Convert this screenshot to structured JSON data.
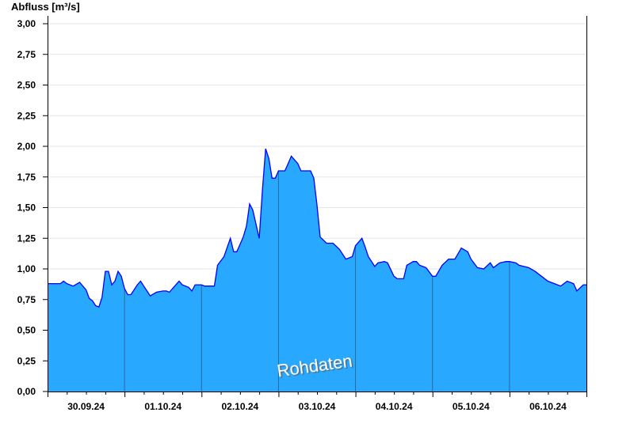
{
  "chart_data": {
    "type": "area",
    "title": "",
    "ylabel": "Abfluss [m³/s]",
    "xlabel": "",
    "ylim": [
      0,
      3.0
    ],
    "yticks": [
      "0,00",
      "0,25",
      "0,50",
      "0,75",
      "1,00",
      "1,25",
      "1,50",
      "1,75",
      "2,00",
      "2,25",
      "2,50",
      "2,75",
      "3,00"
    ],
    "xlim": [
      "30.09.24 00:00",
      "07.10.24 00:00"
    ],
    "xticks": [
      "30.09.24",
      "01.10.24",
      "02.10.24",
      "03.10.24",
      "04.10.24",
      "05.10.24",
      "06.10.24"
    ],
    "grid": true,
    "watermark": "Rohdaten",
    "colors": {
      "fill": "#29a8ff",
      "line": "#0000ff",
      "day_separator": "#2a6a9a",
      "grid": "#e6e6e6"
    },
    "points": [
      [
        "30.09.24 00:00",
        0.88
      ],
      [
        "30.09.24 02:00",
        0.88
      ],
      [
        "30.09.24 04:00",
        0.88
      ],
      [
        "30.09.24 05:00",
        0.9
      ],
      [
        "30.09.24 06:00",
        0.88
      ],
      [
        "30.09.24 08:00",
        0.86
      ],
      [
        "30.09.24 10:00",
        0.89
      ],
      [
        "30.09.24 12:00",
        0.83
      ],
      [
        "30.09.24 13:00",
        0.76
      ],
      [
        "30.09.24 14:00",
        0.74
      ],
      [
        "30.09.24 15:00",
        0.7
      ],
      [
        "30.09.24 16:00",
        0.69
      ],
      [
        "30.09.24 17:00",
        0.77
      ],
      [
        "30.09.24 18:00",
        0.98
      ],
      [
        "30.09.24 19:00",
        0.98
      ],
      [
        "30.09.24 20:00",
        0.87
      ],
      [
        "30.09.24 21:00",
        0.9
      ],
      [
        "30.09.24 22:00",
        0.98
      ],
      [
        "30.09.24 23:00",
        0.94
      ],
      [
        "01.10.24 00:00",
        0.84
      ],
      [
        "01.10.24 01:00",
        0.79
      ],
      [
        "01.10.24 02:00",
        0.79
      ],
      [
        "01.10.24 04:00",
        0.87
      ],
      [
        "01.10.24 05:00",
        0.9
      ],
      [
        "01.10.24 06:00",
        0.86
      ],
      [
        "01.10.24 07:00",
        0.82
      ],
      [
        "01.10.24 08:00",
        0.78
      ],
      [
        "01.10.24 10:00",
        0.81
      ],
      [
        "01.10.24 12:00",
        0.82
      ],
      [
        "01.10.24 13:00",
        0.82
      ],
      [
        "01.10.24 14:00",
        0.81
      ],
      [
        "01.10.24 16:00",
        0.87
      ],
      [
        "01.10.24 17:00",
        0.9
      ],
      [
        "01.10.24 18:00",
        0.87
      ],
      [
        "01.10.24 20:00",
        0.85
      ],
      [
        "01.10.24 21:00",
        0.82
      ],
      [
        "01.10.24 22:00",
        0.87
      ],
      [
        "02.10.24 00:00",
        0.87
      ],
      [
        "02.10.24 01:00",
        0.86
      ],
      [
        "02.10.24 04:00",
        0.86
      ],
      [
        "02.10.24 05:00",
        1.03
      ],
      [
        "02.10.24 07:00",
        1.1
      ],
      [
        "02.10.24 09:00",
        1.25
      ],
      [
        "02.10.24 10:00",
        1.14
      ],
      [
        "02.10.24 11:00",
        1.14
      ],
      [
        "02.10.24 13:00",
        1.26
      ],
      [
        "02.10.24 14:00",
        1.35
      ],
      [
        "02.10.24 15:00",
        1.53
      ],
      [
        "02.10.24 16:00",
        1.48
      ],
      [
        "02.10.24 18:00",
        1.25
      ],
      [
        "02.10.24 19:00",
        1.65
      ],
      [
        "02.10.24 20:00",
        1.98
      ],
      [
        "02.10.24 21:00",
        1.9
      ],
      [
        "02.10.24 22:00",
        1.74
      ],
      [
        "02.10.24 23:00",
        1.74
      ],
      [
        "03.10.24 00:00",
        1.8
      ],
      [
        "03.10.24 02:00",
        1.8
      ],
      [
        "03.10.24 03:00",
        1.86
      ],
      [
        "03.10.24 04:00",
        1.92
      ],
      [
        "03.10.24 06:00",
        1.86
      ],
      [
        "03.10.24 07:00",
        1.8
      ],
      [
        "03.10.24 10:00",
        1.8
      ],
      [
        "03.10.24 11:00",
        1.74
      ],
      [
        "03.10.24 12:00",
        1.52
      ],
      [
        "03.10.24 13:00",
        1.26
      ],
      [
        "03.10.24 15:00",
        1.21
      ],
      [
        "03.10.24 17:00",
        1.21
      ],
      [
        "03.10.24 19:00",
        1.16
      ],
      [
        "03.10.24 21:00",
        1.08
      ],
      [
        "03.10.24 23:00",
        1.1
      ],
      [
        "04.10.24 00:00",
        1.19
      ],
      [
        "04.10.24 02:00",
        1.25
      ],
      [
        "04.10.24 03:00",
        1.18
      ],
      [
        "04.10.24 04:00",
        1.1
      ],
      [
        "04.10.24 06:00",
        1.02
      ],
      [
        "04.10.24 07:00",
        1.05
      ],
      [
        "04.10.24 09:00",
        1.06
      ],
      [
        "04.10.24 10:00",
        1.05
      ],
      [
        "04.10.24 12:00",
        0.94
      ],
      [
        "04.10.24 13:00",
        0.92
      ],
      [
        "04.10.24 15:00",
        0.92
      ],
      [
        "04.10.24 16:00",
        1.03
      ],
      [
        "04.10.24 18:00",
        1.06
      ],
      [
        "04.10.24 19:00",
        1.06
      ],
      [
        "04.10.24 20:00",
        1.03
      ],
      [
        "04.10.24 22:00",
        1.01
      ],
      [
        "05.10.24 00:00",
        0.94
      ],
      [
        "05.10.24 01:00",
        0.94
      ],
      [
        "05.10.24 03:00",
        1.03
      ],
      [
        "05.10.24 05:00",
        1.08
      ],
      [
        "05.10.24 07:00",
        1.08
      ],
      [
        "05.10.24 09:00",
        1.17
      ],
      [
        "05.10.24 11:00",
        1.14
      ],
      [
        "05.10.24 12:00",
        1.08
      ],
      [
        "05.10.24 14:00",
        1.01
      ],
      [
        "05.10.24 16:00",
        1.0
      ],
      [
        "05.10.24 18:00",
        1.05
      ],
      [
        "05.10.24 19:00",
        1.01
      ],
      [
        "05.10.24 21:00",
        1.05
      ],
      [
        "05.10.24 23:00",
        1.06
      ],
      [
        "06.10.24 00:00",
        1.06
      ],
      [
        "06.10.24 02:00",
        1.05
      ],
      [
        "06.10.24 03:00",
        1.03
      ],
      [
        "06.10.24 06:00",
        1.01
      ],
      [
        "06.10.24 08:00",
        0.98
      ],
      [
        "06.10.24 10:00",
        0.94
      ],
      [
        "06.10.24 12:00",
        0.9
      ],
      [
        "06.10.24 14:00",
        0.88
      ],
      [
        "06.10.24 16:00",
        0.86
      ],
      [
        "06.10.24 18:00",
        0.9
      ],
      [
        "06.10.24 20:00",
        0.88
      ],
      [
        "06.10.24 21:00",
        0.82
      ],
      [
        "06.10.24 23:00",
        0.87
      ],
      [
        "07.10.24 00:00",
        0.87
      ]
    ]
  }
}
